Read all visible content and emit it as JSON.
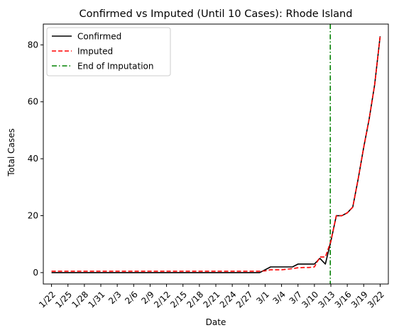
{
  "chart_data": {
    "type": "line",
    "title": "Confirmed vs Imputed (Until 10 Cases): Rhode Island",
    "xlabel": "Date",
    "ylabel": "Total Cases",
    "ylim": [
      -4,
      87.3
    ],
    "xlim": [
      -1.5,
      61.5
    ],
    "yticks": [
      0,
      20,
      40,
      60,
      80
    ],
    "xticks": [
      {
        "x": 0,
        "label": "1/22"
      },
      {
        "x": 3,
        "label": "1/25"
      },
      {
        "x": 6,
        "label": "1/28"
      },
      {
        "x": 9,
        "label": "1/31"
      },
      {
        "x": 12,
        "label": "2/3"
      },
      {
        "x": 15,
        "label": "2/6"
      },
      {
        "x": 18,
        "label": "2/9"
      },
      {
        "x": 21,
        "label": "2/12"
      },
      {
        "x": 24,
        "label": "2/15"
      },
      {
        "x": 27,
        "label": "2/18"
      },
      {
        "x": 30,
        "label": "2/21"
      },
      {
        "x": 33,
        "label": "2/24"
      },
      {
        "x": 36,
        "label": "2/27"
      },
      {
        "x": 39,
        "label": "3/1"
      },
      {
        "x": 42,
        "label": "3/4"
      },
      {
        "x": 45,
        "label": "3/7"
      },
      {
        "x": 48,
        "label": "3/10"
      },
      {
        "x": 51,
        "label": "3/13"
      },
      {
        "x": 54,
        "label": "3/16"
      },
      {
        "x": 57,
        "label": "3/19"
      },
      {
        "x": 60,
        "label": "3/22"
      }
    ],
    "grid": false,
    "legend_position": "top-left",
    "series": [
      {
        "name": "Confirmed",
        "color": "#000000",
        "style": "solid",
        "points": [
          [
            0,
            0
          ],
          [
            38,
            0
          ],
          [
            40,
            2
          ],
          [
            44,
            2
          ],
          [
            45,
            3
          ],
          [
            48,
            3
          ],
          [
            49,
            5
          ],
          [
            50,
            3
          ],
          [
            51,
            11
          ],
          [
            52,
            20
          ],
          [
            53,
            20
          ],
          [
            54,
            21
          ],
          [
            55,
            23
          ],
          [
            56,
            33
          ],
          [
            57,
            44
          ],
          [
            58,
            54
          ],
          [
            59,
            66
          ],
          [
            60,
            83
          ]
        ]
      },
      {
        "name": "Imputed",
        "color": "#ff0000",
        "style": "dashed",
        "points": [
          [
            0,
            0.5
          ],
          [
            38,
            0.5
          ],
          [
            39,
            0.6
          ],
          [
            40,
            1
          ],
          [
            42,
            1
          ],
          [
            44,
            1.4
          ],
          [
            45,
            1.7
          ],
          [
            46,
            1.8
          ],
          [
            47,
            1.8
          ],
          [
            48,
            2
          ],
          [
            49,
            5.5
          ],
          [
            50,
            5.5
          ],
          [
            51,
            11
          ],
          [
            52,
            20
          ],
          [
            53,
            20
          ],
          [
            54,
            21
          ],
          [
            55,
            23
          ],
          [
            56,
            33
          ],
          [
            57,
            44
          ],
          [
            58,
            54
          ],
          [
            59,
            66
          ],
          [
            60,
            83
          ]
        ]
      }
    ],
    "vline": {
      "name": "End of Imputation",
      "x": 50.9,
      "color": "#008000",
      "style": "dashdot"
    }
  }
}
